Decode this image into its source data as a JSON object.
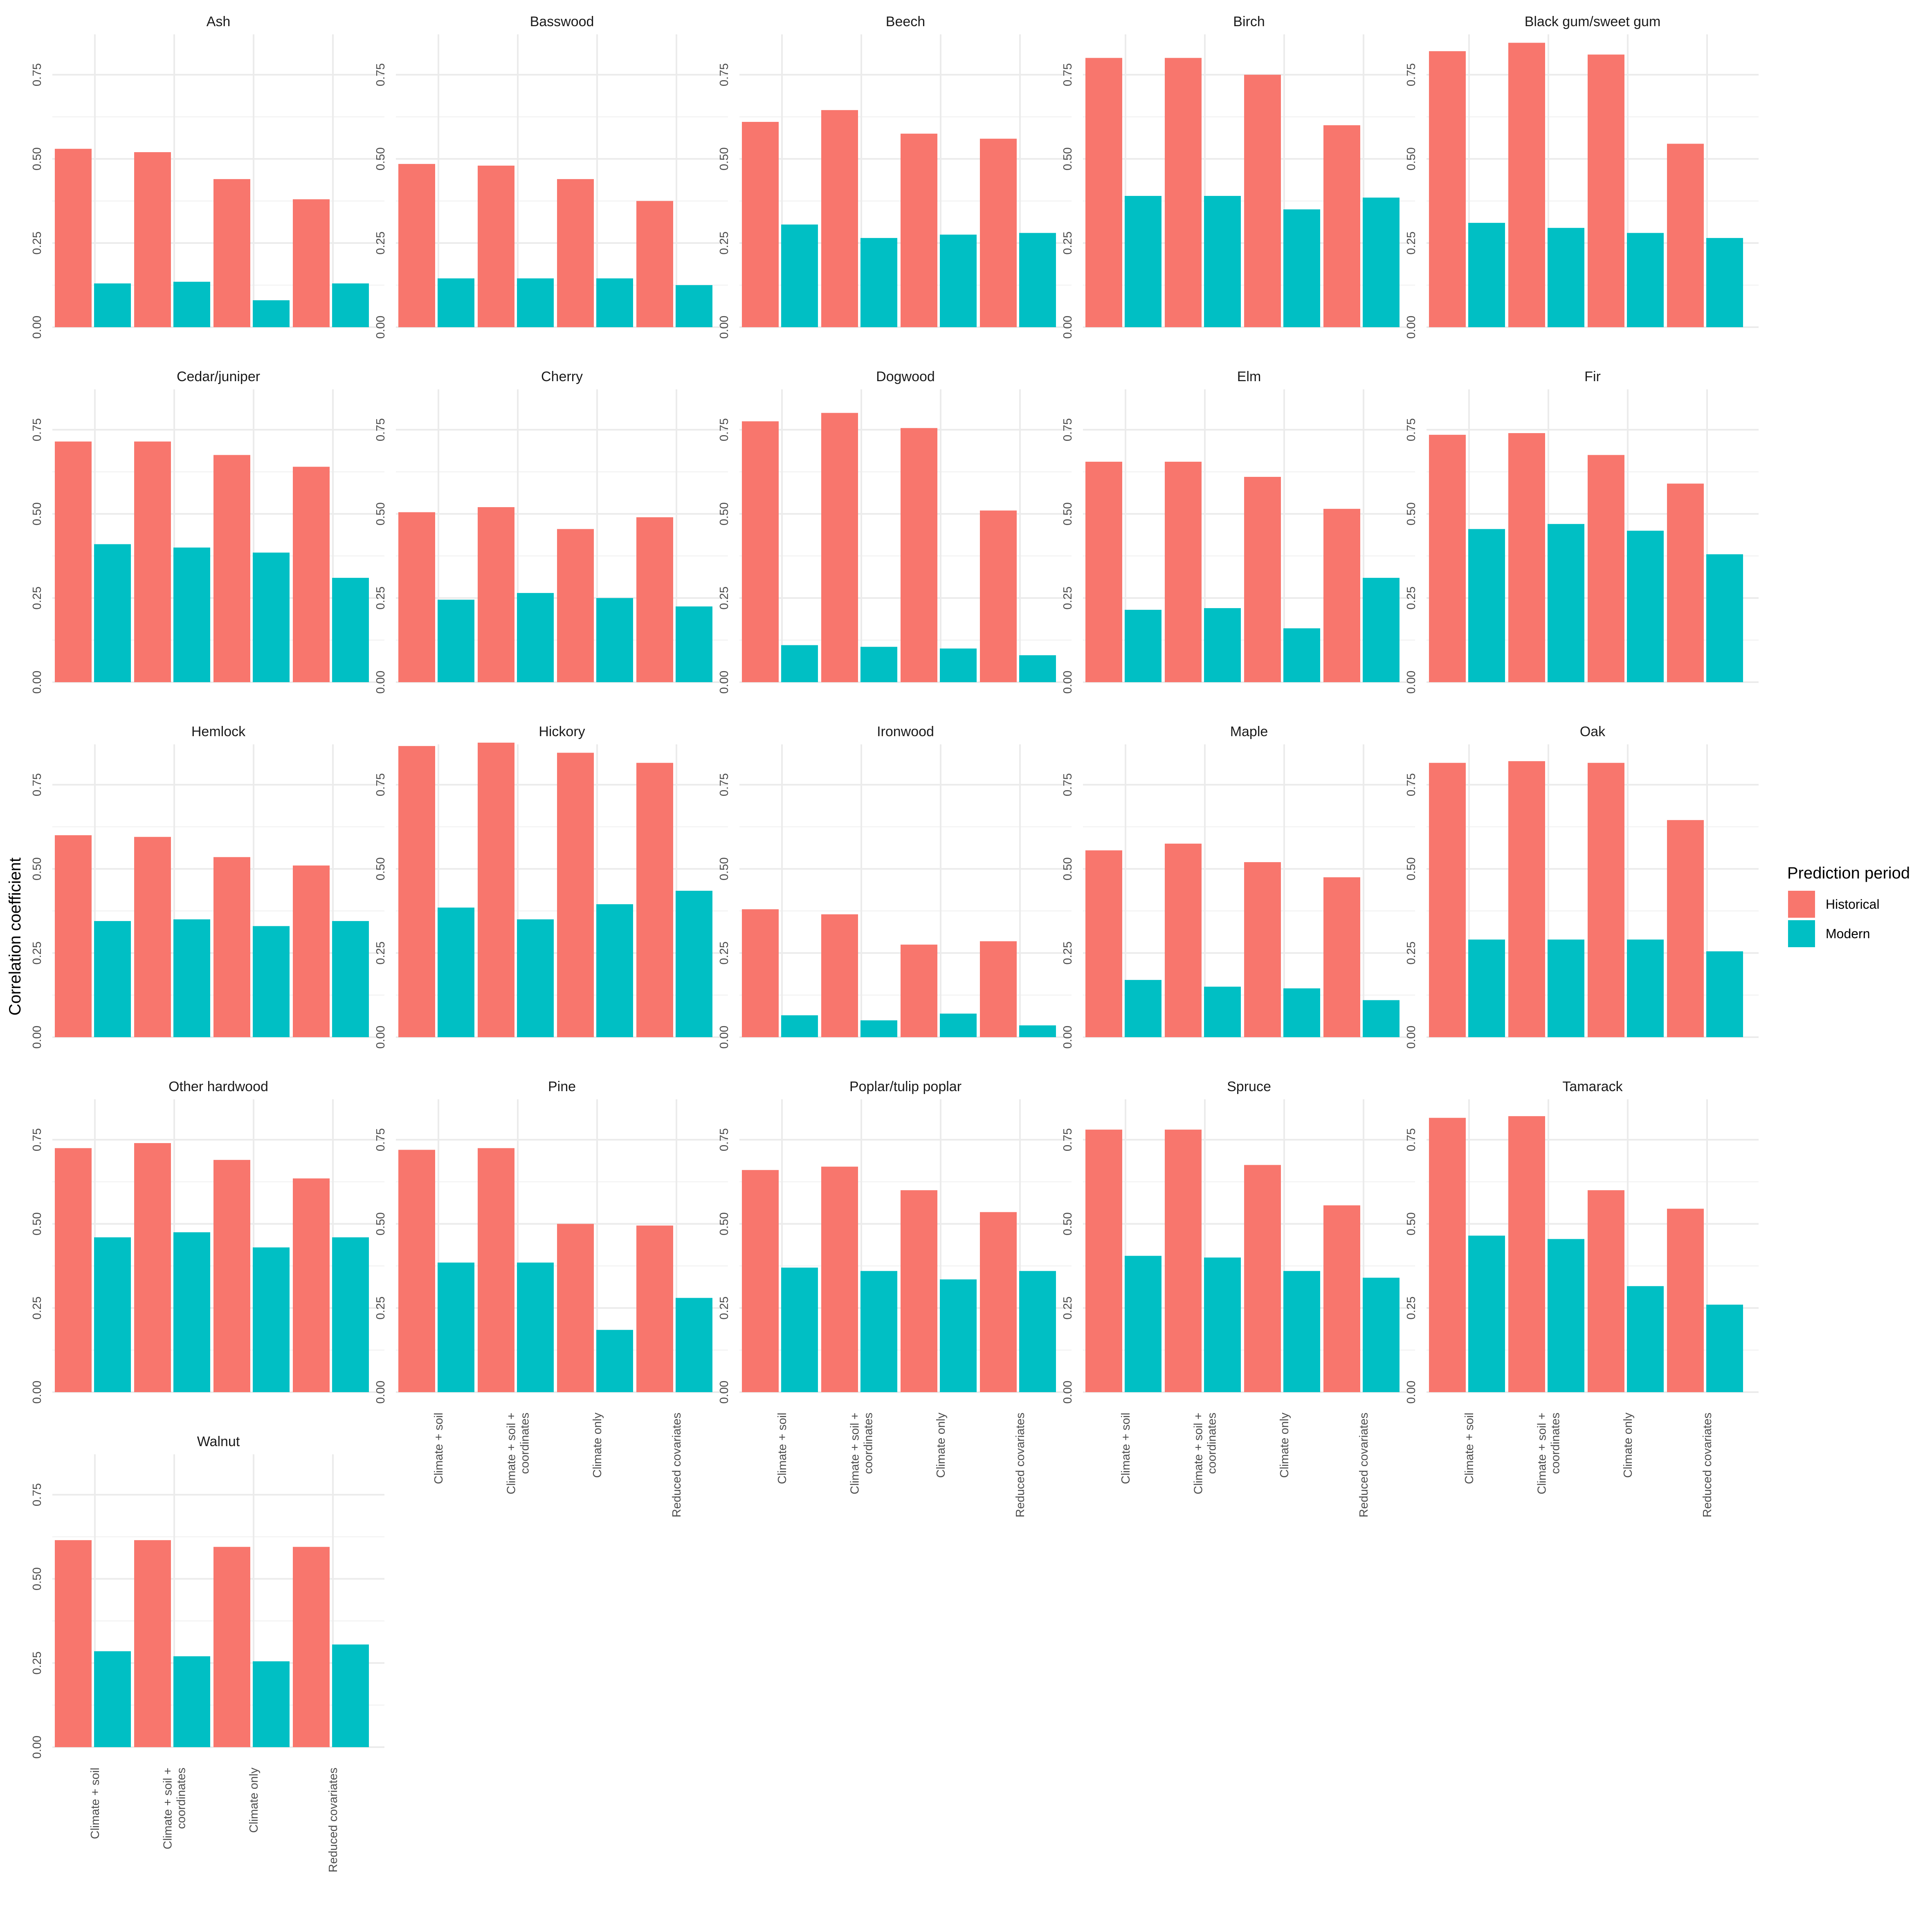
{
  "chart_data": {
    "type": "bar",
    "ylabel": "Correlation coefficient",
    "xlabel": "",
    "ylim": [
      0,
      0.87
    ],
    "y_ticks": [
      0,
      0.25,
      0.5,
      0.75
    ],
    "y_tick_labels": [
      "0.00",
      "0.25",
      "0.50",
      "0.75"
    ],
    "categories": [
      "Climate + soil",
      "Climate + soil + coordinates",
      "Climate only",
      "Reduced covariates"
    ],
    "category_label_lines": [
      [
        "Climate + soil"
      ],
      [
        "Climate + soil +",
        "coordinates"
      ],
      [
        "Climate only"
      ],
      [
        "Reduced covariates"
      ]
    ],
    "legend": {
      "title": "Prediction period",
      "position": "right",
      "entries": [
        {
          "name": "Historical",
          "color": "#F8766D"
        },
        {
          "name": "Modern",
          "color": "#00BFC4"
        }
      ]
    },
    "grid": true,
    "facet_columns": 5,
    "facets": [
      {
        "name": "Ash",
        "historical": [
          0.53,
          0.52,
          0.44,
          0.38
        ],
        "modern": [
          0.13,
          0.135,
          0.08,
          0.13
        ]
      },
      {
        "name": "Basswood",
        "historical": [
          0.485,
          0.48,
          0.44,
          0.375
        ],
        "modern": [
          0.145,
          0.145,
          0.145,
          0.125
        ]
      },
      {
        "name": "Beech",
        "historical": [
          0.61,
          0.645,
          0.575,
          0.56
        ],
        "modern": [
          0.305,
          0.265,
          0.275,
          0.28
        ]
      },
      {
        "name": "Birch",
        "historical": [
          0.8,
          0.8,
          0.75,
          0.6
        ],
        "modern": [
          0.39,
          0.39,
          0.35,
          0.385
        ]
      },
      {
        "name": "Black gum/sweet gum",
        "historical": [
          0.82,
          0.845,
          0.81,
          0.545
        ],
        "modern": [
          0.31,
          0.295,
          0.28,
          0.265
        ]
      },
      {
        "name": "Cedar/juniper",
        "historical": [
          0.715,
          0.715,
          0.675,
          0.64
        ],
        "modern": [
          0.41,
          0.4,
          0.385,
          0.31
        ]
      },
      {
        "name": "Cherry",
        "historical": [
          0.505,
          0.52,
          0.455,
          0.49
        ],
        "modern": [
          0.245,
          0.265,
          0.25,
          0.225
        ]
      },
      {
        "name": "Dogwood",
        "historical": [
          0.775,
          0.8,
          0.755,
          0.51
        ],
        "modern": [
          0.11,
          0.105,
          0.1,
          0.08
        ]
      },
      {
        "name": "Elm",
        "historical": [
          0.655,
          0.655,
          0.61,
          0.515
        ],
        "modern": [
          0.215,
          0.22,
          0.16,
          0.31
        ]
      },
      {
        "name": "Fir",
        "historical": [
          0.735,
          0.74,
          0.675,
          0.59
        ],
        "modern": [
          0.455,
          0.47,
          0.45,
          0.38
        ]
      },
      {
        "name": "Hemlock",
        "historical": [
          0.6,
          0.595,
          0.535,
          0.51
        ],
        "modern": [
          0.345,
          0.35,
          0.33,
          0.345
        ]
      },
      {
        "name": "Hickory",
        "historical": [
          0.865,
          0.875,
          0.845,
          0.815
        ],
        "modern": [
          0.385,
          0.35,
          0.395,
          0.435
        ]
      },
      {
        "name": "Ironwood",
        "historical": [
          0.38,
          0.365,
          0.275,
          0.285
        ],
        "modern": [
          0.065,
          0.05,
          0.07,
          0.035
        ]
      },
      {
        "name": "Maple",
        "historical": [
          0.555,
          0.575,
          0.52,
          0.475
        ],
        "modern": [
          0.17,
          0.15,
          0.145,
          0.11
        ]
      },
      {
        "name": "Oak",
        "historical": [
          0.815,
          0.82,
          0.815,
          0.645
        ],
        "modern": [
          0.29,
          0.29,
          0.29,
          0.255
        ]
      },
      {
        "name": "Other hardwood",
        "historical": [
          0.725,
          0.74,
          0.69,
          0.635
        ],
        "modern": [
          0.46,
          0.475,
          0.43,
          0.46
        ]
      },
      {
        "name": "Pine",
        "historical": [
          0.72,
          0.725,
          0.5,
          0.495
        ],
        "modern": [
          0.385,
          0.385,
          0.185,
          0.28
        ]
      },
      {
        "name": "Poplar/tulip poplar",
        "historical": [
          0.66,
          0.67,
          0.6,
          0.535
        ],
        "modern": [
          0.37,
          0.36,
          0.335,
          0.36
        ]
      },
      {
        "name": "Spruce",
        "historical": [
          0.78,
          0.78,
          0.675,
          0.555
        ],
        "modern": [
          0.405,
          0.4,
          0.36,
          0.34
        ]
      },
      {
        "name": "Tamarack",
        "historical": [
          0.815,
          0.82,
          0.6,
          0.545
        ],
        "modern": [
          0.465,
          0.455,
          0.315,
          0.26
        ]
      },
      {
        "name": "Walnut",
        "historical": [
          0.615,
          0.615,
          0.595,
          0.595
        ],
        "modern": [
          0.285,
          0.27,
          0.255,
          0.305
        ]
      }
    ]
  }
}
